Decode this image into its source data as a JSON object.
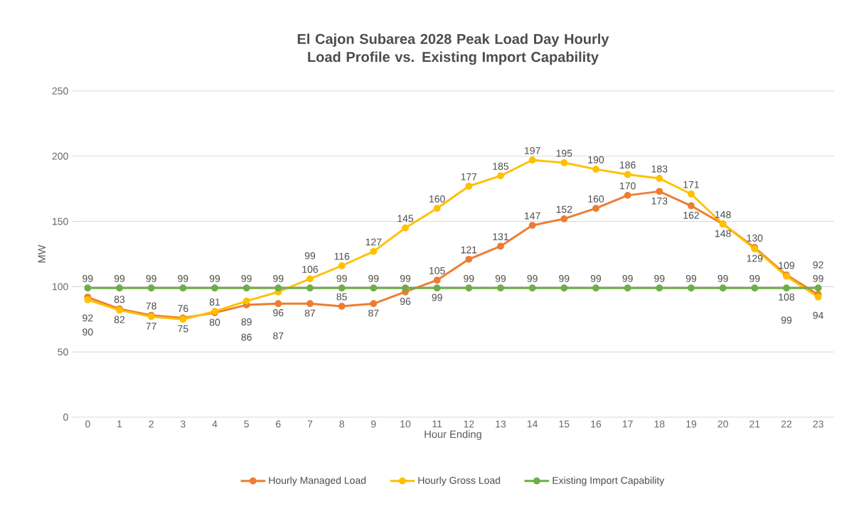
{
  "chart_data": {
    "type": "line",
    "title": "El Cajon Subarea 2028 Peak Load Day Hourly Load Profile vs. Existing Import Capability",
    "xlabel": "Hour Ending",
    "ylabel": "MW",
    "categories": [
      "0",
      "1",
      "2",
      "3",
      "4",
      "5",
      "6",
      "7",
      "8",
      "9",
      "10",
      "11",
      "12",
      "13",
      "14",
      "15",
      "16",
      "17",
      "18",
      "19",
      "20",
      "21",
      "22",
      "23"
    ],
    "series": [
      {
        "name": "Hourly Managed Load",
        "color": "#ed7d31",
        "values": [
          92,
          83,
          78,
          76,
          80,
          86,
          87,
          87,
          85,
          87,
          96,
          105,
          121,
          131,
          147,
          152,
          160,
          170,
          173,
          162,
          148,
          130,
          109,
          94
        ]
      },
      {
        "name": "Hourly Gross Load",
        "color": "#ffc000",
        "values": [
          90,
          82,
          77,
          75,
          81,
          89,
          96,
          106,
          116,
          127,
          145,
          160,
          177,
          185,
          197,
          195,
          190,
          186,
          183,
          171,
          148,
          129,
          108,
          92
        ]
      },
      {
        "name": "Existing Import Capability",
        "color": "#70ad47",
        "values": [
          99,
          99,
          99,
          99,
          99,
          99,
          99,
          99,
          99,
          99,
          99,
          99,
          99,
          99,
          99,
          99,
          99,
          99,
          99,
          99,
          99,
          99,
          99,
          99
        ]
      }
    ],
    "ylim": [
      0,
      250
    ],
    "yticks": [
      0,
      50,
      100,
      150,
      200,
      250
    ],
    "grid": "y",
    "legend": "bottom",
    "marker": "circle",
    "line_style": "solid",
    "data_labels": true
  }
}
